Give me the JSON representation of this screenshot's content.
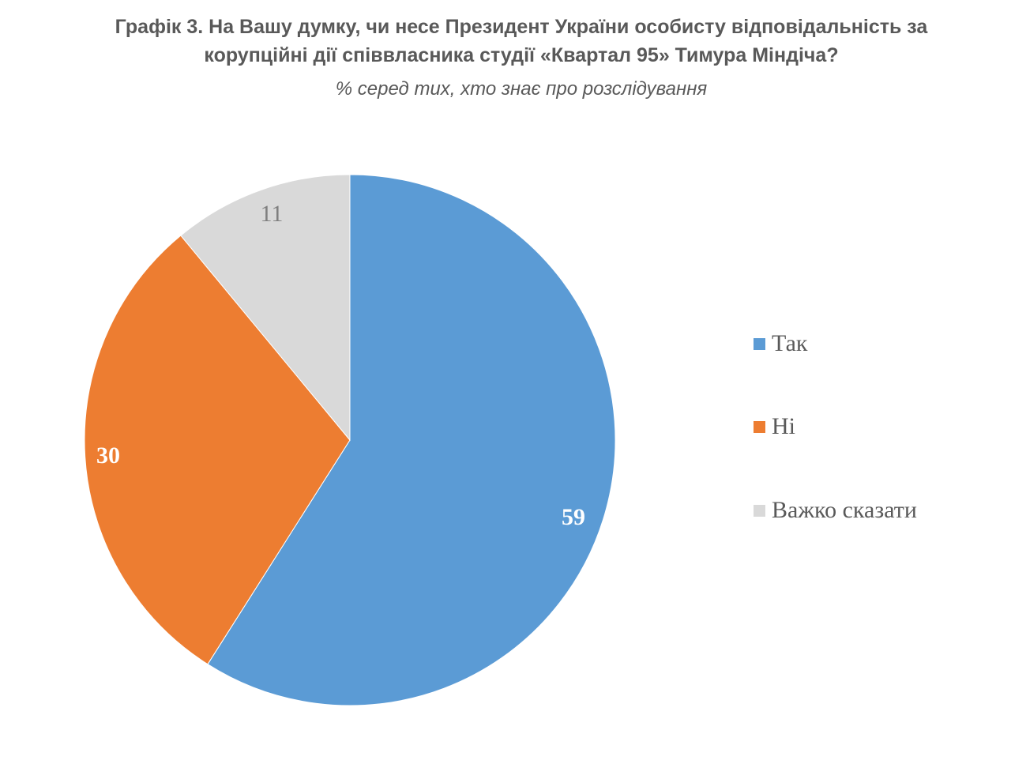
{
  "title_line1": "Графік 3. На Вашу думку, чи несе Президент України особисту відповідальність за",
  "title_line2": "корупційні дії співвласника студії «Квартал 95» Тимура Міндіча?",
  "subtitle": "% серед тих, хто знає про розслідування",
  "slices": [
    {
      "label": "Так",
      "value": 59,
      "value_text": "59",
      "color": "#5B9BD5",
      "label_color": "#ffffff"
    },
    {
      "label": "Ні",
      "value": 30,
      "value_text": "30",
      "color": "#ED7D31",
      "label_color": "#ffffff"
    },
    {
      "label": "Важко сказати",
      "value": 11,
      "value_text": "11",
      "color": "#D9D9D9",
      "label_color": "#7f7f7f"
    }
  ],
  "chart_data": {
    "type": "pie",
    "title": "Графік 3. На Вашу думку, чи несе Президент України особисту відповідальність за корупційні дії співвласника студії «Квартал 95» Тимура Міндіча?",
    "subtitle": "% серед тих, хто знає про розслідування",
    "categories": [
      "Так",
      "Ні",
      "Важко сказати"
    ],
    "values": [
      59,
      30,
      11
    ],
    "colors": [
      "#5B9BD5",
      "#ED7D31",
      "#D9D9D9"
    ],
    "unit": "%",
    "start_angle": "12 o'clock, clockwise",
    "legend_position": "right"
  }
}
